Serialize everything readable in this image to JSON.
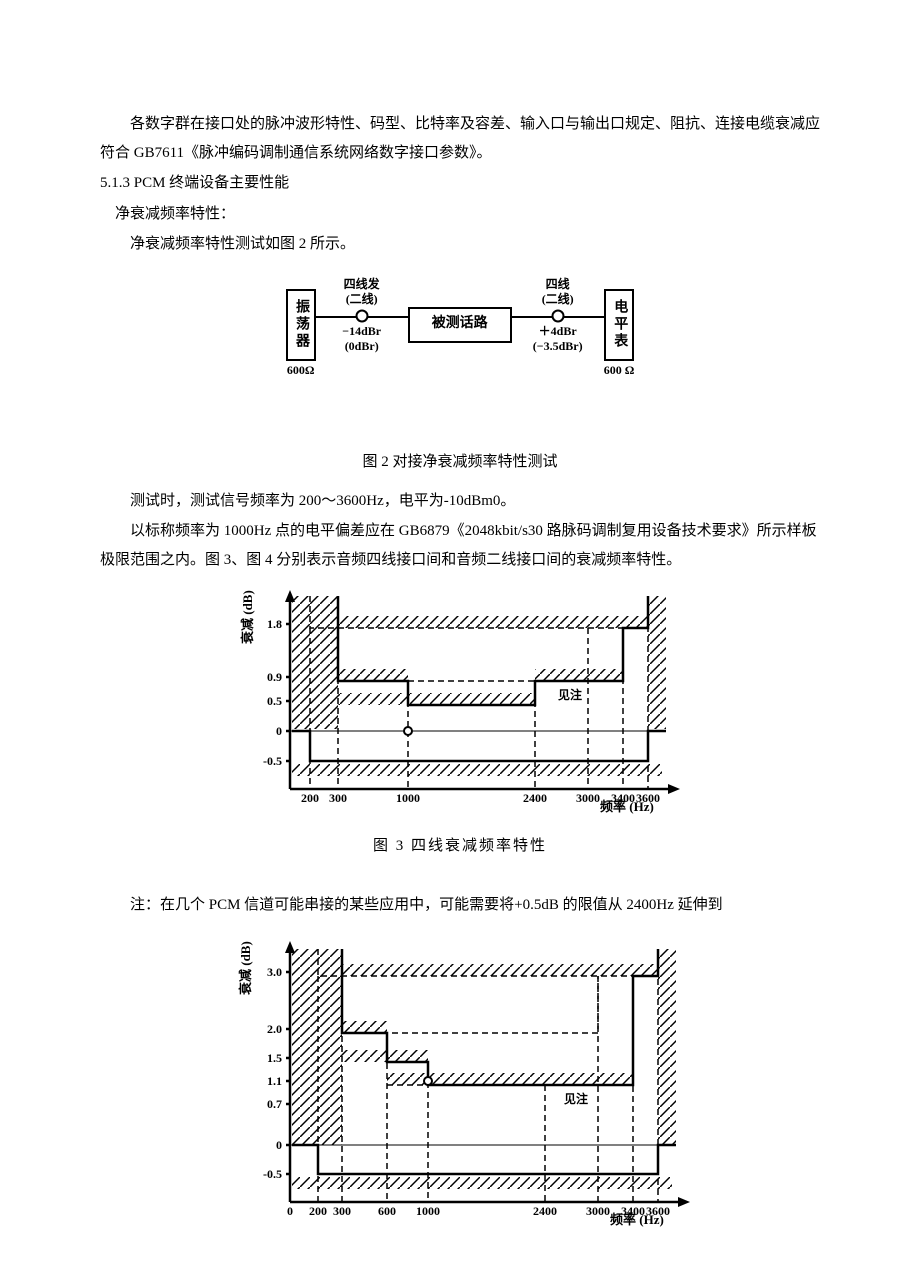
{
  "para1": "各数字群在接口处的脉冲波形特性、码型、比特率及容差、输入口与输出口规定、阻抗、连接电缆衰减应符合 GB7611《脉冲编码调制通信系统网络数字接口参数》。",
  "heading513": "5.1.3  PCM 终端设备主要性能",
  "para2": "净衰减频率特性：",
  "para3": "净衰减频率特性测试如图 2 所示。",
  "fig2": {
    "left_block": "振荡器",
    "left_under": "600Ω",
    "conn1_top": "四线发",
    "conn1_top2": "(二线)",
    "conn1_b1": "−14dBr",
    "conn1_b2": "(0dBr)",
    "mid_block": "被测话路",
    "conn2_top": "四线",
    "conn2_top2": "(二线)",
    "conn2_b1": "＋4dBr",
    "conn2_b2": "(−3.5dBr)",
    "right_block": "电平表",
    "right_under": "600 Ω"
  },
  "caption2": "图 2 对接净衰减频率特性测试",
  "para4": "测试时，测试信号频率为 200～3600Hz，电平为-10dBm0。",
  "para5": "以标称频率为 1000Hz 点的电平偏差应在 GB6879《2048kbit/s30 路脉码调制复用设备技术要求》所示样板极限范围之内。图 3、图 4 分别表示音频四线接口间和音频二线接口间的衰减频率特性。",
  "caption3": "图 3  四线衰减频率特性",
  "note1": "注：在几个 PCM 信道可能串接的某些应用中，可能需要将+0.5dB 的限值从 2400Hz 延伸到",
  "chart_common": {
    "ylabel": "衰减 (dB)",
    "xlabel": "频率 (Hz)",
    "note_text": "见注"
  },
  "chart3": {
    "y_ticks": [
      "1.8",
      "0.9",
      "0.5",
      "0",
      "-0.5"
    ],
    "y_tick_positions": [
      40,
      93,
      117,
      147,
      177
    ],
    "x_ticks": [
      "200",
      "300",
      "1000",
      "2400",
      "3000",
      "3400",
      "3600"
    ],
    "x_tick_positions": [
      90,
      118,
      188,
      315,
      368,
      403,
      428
    ]
  },
  "chart4": {
    "y_ticks": [
      "3.0",
      "2.0",
      "1.5",
      "1.1",
      "0.7",
      "0",
      "-0.5"
    ],
    "y_tick_positions": [
      35,
      92,
      121,
      144,
      167,
      208,
      237
    ],
    "x_ticks": [
      "0",
      "200",
      "300",
      "600",
      "1000",
      "2400",
      "3000",
      "3400",
      "3600"
    ],
    "x_tick_positions": [
      70,
      98,
      122,
      167,
      208,
      325,
      378,
      413,
      438
    ]
  }
}
